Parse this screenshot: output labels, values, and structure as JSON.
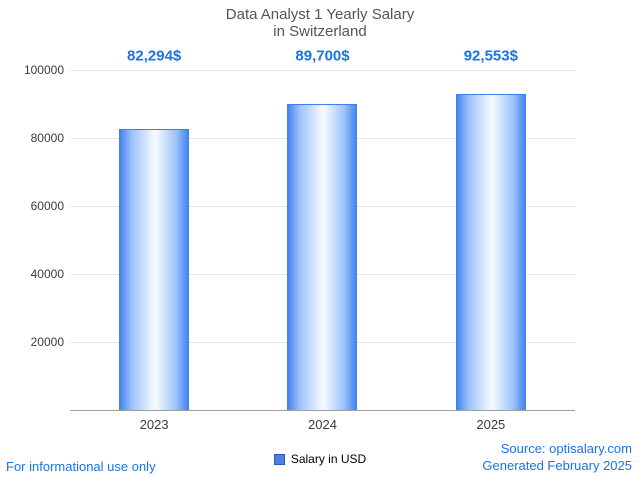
{
  "title": {
    "line1": "Data Analyst 1 Yearly Salary",
    "line2": "in Switzerland"
  },
  "chart_data": {
    "type": "bar",
    "categories": [
      "2023",
      "2024",
      "2025"
    ],
    "values": [
      82294,
      89700,
      92553
    ],
    "value_labels": [
      "82,294$",
      "89,700$",
      "92,553$"
    ],
    "series": [
      {
        "name": "Salary in USD",
        "values": [
          82294,
          89700,
          92553
        ]
      }
    ],
    "title": "Data Analyst 1 Yearly Salary in Switzerland",
    "xlabel": "",
    "ylabel": "",
    "ylim": [
      0,
      100000
    ],
    "yticks": [
      20000,
      40000,
      60000,
      80000,
      100000
    ],
    "grid": true,
    "legend_position": "bottom",
    "colors": {
      "bar_edge": "#3d7ef0",
      "bar_center": "#f7fbff",
      "value_label": "#1a73e8",
      "grid": "#e6e6e6",
      "axis": "#9e9e9e"
    }
  },
  "legend": {
    "label": "Salary in USD"
  },
  "footer": {
    "left": "For informational use only",
    "source": "Source: optisalary.com",
    "generated": "Generated February 2025"
  }
}
